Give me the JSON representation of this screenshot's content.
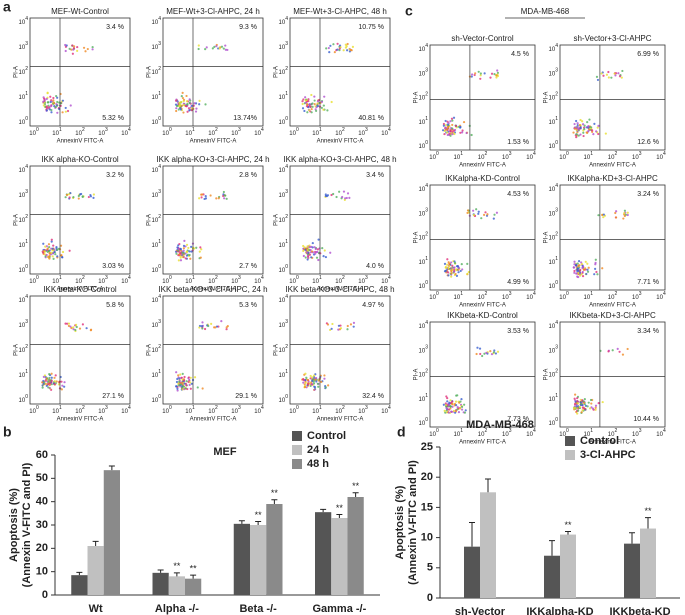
{
  "panel_letters": [
    "a",
    "b",
    "c",
    "d"
  ],
  "flow": {
    "y_label": "PI-A",
    "x_label": "AnnexinV FITC-A",
    "tick_base": "10",
    "tick_exponents": [
      0,
      1,
      2,
      3,
      4
    ],
    "header_c": "MDA-MB-468",
    "panel_a": [
      {
        "title": "MEF-Wt-Control",
        "ur": "3.4 %",
        "lr": "5.32 %"
      },
      {
        "title": "MEF-Wt+3-Cl-AHPC, 24 h",
        "ur": "9.3 %",
        "lr": "13.74%"
      },
      {
        "title": "MEF-Wt+3-Cl-AHPC, 48 h",
        "ur": "10.75 %",
        "lr": "40.81 %"
      },
      {
        "title": "IKK alpha-KO-Control",
        "ur": "3.2 %",
        "lr": "3.03 %"
      },
      {
        "title": "IKK alpha-KO+3-Cl-AHPC, 24 h",
        "ur": "2.8 %",
        "lr": "2.7 %"
      },
      {
        "title": "IKK alpha-KO+3-Cl-AHPC, 48 h",
        "ur": "3.4 %",
        "lr": "4.0 %"
      },
      {
        "title": "IKK beta-KO-Control",
        "ur": "5.8 %",
        "lr": "27.1 %"
      },
      {
        "title": "IKK beta-KO+3-Cl-AHPC, 24 h",
        "ur": "5.3 %",
        "lr": "29.1 %"
      },
      {
        "title": "IKK beta-KO+3-Cl-AHPC, 48 h",
        "ur": "4.97 %",
        "lr": "32.4 %"
      }
    ],
    "panel_c": [
      {
        "title": "sh-Vector-Control",
        "ur": "4.5 %",
        "lr": "1.53 %"
      },
      {
        "title": "sh-Vector+3-Cl-AHPC",
        "ur": "6.99 %",
        "lr": "12.6 %"
      },
      {
        "title": "IKKalpha-KD-Control",
        "ur": "4.53 %",
        "lr": "4.99 %"
      },
      {
        "title": "IKKalpha-KD+3-Cl-AHPC",
        "ur": "3.24 %",
        "lr": "7.71 %"
      },
      {
        "title": "IKKbeta-KD-Control",
        "ur": "3.53 %",
        "lr": "7.73 %"
      },
      {
        "title": "IKKbeta-KD+3-Cl-AHPC",
        "ur": "3.34 %",
        "lr": "10.44 %"
      }
    ]
  },
  "chart_data": [
    {
      "type": "bar",
      "title": "MEF",
      "ylabel": [
        "Apoptosis (%)",
        "(Annexin V-FITC and PI)"
      ],
      "categories": [
        "Wt",
        "Alpha -/-",
        "Beta -/-",
        "Gamma -/-"
      ],
      "series": [
        {
          "name": "Control",
          "color": "#555555",
          "values": [
            8.5,
            9.5,
            30.5,
            35.5
          ],
          "errors": [
            1.2,
            1.2,
            1.3,
            1.2
          ],
          "sig": [
            null,
            null,
            null,
            null
          ]
        },
        {
          "name": "24 h",
          "color": "#c0c0c0",
          "values": [
            21,
            8,
            30,
            33
          ],
          "errors": [
            2,
            1.5,
            1.5,
            1.5
          ],
          "sig": [
            null,
            "**",
            "**",
            "**"
          ]
        },
        {
          "name": "48 h",
          "color": "#8a8a8a",
          "values": [
            53.5,
            7,
            39,
            42
          ],
          "errors": [
            1.8,
            1.5,
            1.8,
            1.8
          ],
          "sig": [
            null,
            "**",
            "**",
            "**"
          ]
        }
      ],
      "ylim": [
        0,
        60
      ],
      "yticks": [
        0,
        10,
        20,
        30,
        40,
        50,
        60
      ]
    },
    {
      "type": "bar",
      "title": "MDA-MB-468",
      "ylabel": [
        "Apoptosis (%)",
        "(Annexin V-FITC and PI)"
      ],
      "categories": [
        "sh-Vector",
        "IKKalpha-KD",
        "IKKbeta-KD"
      ],
      "series": [
        {
          "name": "Control",
          "color": "#555555",
          "values": [
            8.5,
            7,
            9
          ],
          "errors": [
            4,
            2.5,
            1.8
          ],
          "sig": [
            null,
            null,
            null
          ]
        },
        {
          "name": "3-Cl-AHPC",
          "color": "#c0c0c0",
          "values": [
            17.5,
            10.5,
            11.5
          ],
          "errors": [
            2.2,
            0.5,
            1.8
          ],
          "sig": [
            null,
            "**",
            "**"
          ]
        }
      ],
      "ylim": [
        0,
        25
      ],
      "yticks": [
        0,
        5,
        10,
        15,
        20,
        25
      ]
    }
  ]
}
